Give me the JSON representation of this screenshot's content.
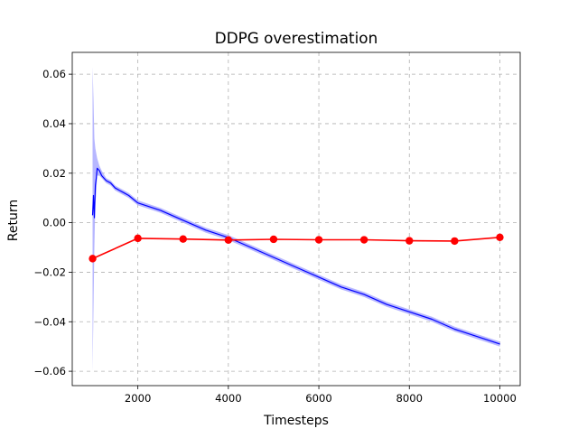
{
  "chart_data": {
    "type": "line",
    "title": "DDPG overestimation",
    "xlabel": "Timesteps",
    "ylabel": "Return",
    "xlim": [
      550,
      10450
    ],
    "ylim": [
      -0.0658,
      0.0688
    ],
    "grid": true,
    "legend": "none",
    "x_ticks": [
      2000,
      4000,
      6000,
      8000,
      10000
    ],
    "x_tick_labels": [
      "2000",
      "4000",
      "6000",
      "8000",
      "10000"
    ],
    "y_ticks": [
      -0.06,
      -0.04,
      -0.02,
      0.0,
      0.02,
      0.04,
      0.06
    ],
    "y_tick_labels": [
      "−0.06",
      "−0.04",
      "−0.02",
      "0.00",
      "0.02",
      "0.04",
      "0.06"
    ],
    "series": [
      {
        "style": "noisy-line-with-band",
        "color": "#0000ff",
        "band_color": "#aaaaff",
        "x": [
          1000,
          1020,
          1040,
          1060,
          1080,
          1100,
          1150,
          1200,
          1300,
          1400,
          1500,
          1600,
          1700,
          1800,
          2000,
          2500,
          3000,
          3500,
          4000,
          4500,
          5000,
          5500,
          6000,
          6500,
          7000,
          7500,
          8000,
          8500,
          9000,
          9500,
          10000
        ],
        "values": [
          0.003,
          0.011,
          0.002,
          0.015,
          0.018,
          0.022,
          0.021,
          0.019,
          0.017,
          0.016,
          0.014,
          0.013,
          0.012,
          0.011,
          0.008,
          0.005,
          0.001,
          -0.003,
          -0.006,
          -0.01,
          -0.014,
          -0.018,
          -0.022,
          -0.026,
          -0.029,
          -0.033,
          -0.036,
          -0.039,
          -0.043,
          -0.046,
          -0.049
        ],
        "band_low": [
          -0.06,
          -0.035,
          -0.01,
          0.008,
          0.012,
          0.019,
          0.019,
          0.018,
          0.016,
          0.015,
          0.013,
          0.012,
          0.011,
          0.01,
          0.007,
          0.004,
          0.0,
          -0.004,
          -0.007,
          -0.011,
          -0.015,
          -0.019,
          -0.023,
          -0.027,
          -0.03,
          -0.034,
          -0.037,
          -0.04,
          -0.044,
          -0.047,
          -0.05
        ],
        "band_high": [
          0.063,
          0.05,
          0.034,
          0.03,
          0.028,
          0.026,
          0.023,
          0.021,
          0.018,
          0.017,
          0.015,
          0.014,
          0.013,
          0.012,
          0.009,
          0.006,
          0.002,
          -0.002,
          -0.005,
          -0.009,
          -0.013,
          -0.017,
          -0.021,
          -0.025,
          -0.028,
          -0.032,
          -0.035,
          -0.038,
          -0.042,
          -0.045,
          -0.048
        ]
      },
      {
        "style": "line-with-markers",
        "color": "#ff0000",
        "x": [
          1000,
          2000,
          3000,
          4000,
          5000,
          6000,
          7000,
          8000,
          9000,
          10000
        ],
        "values": [
          -0.0145,
          -0.0063,
          -0.0066,
          -0.007,
          -0.0067,
          -0.0069,
          -0.0069,
          -0.0073,
          -0.0074,
          -0.0059
        ]
      }
    ]
  }
}
